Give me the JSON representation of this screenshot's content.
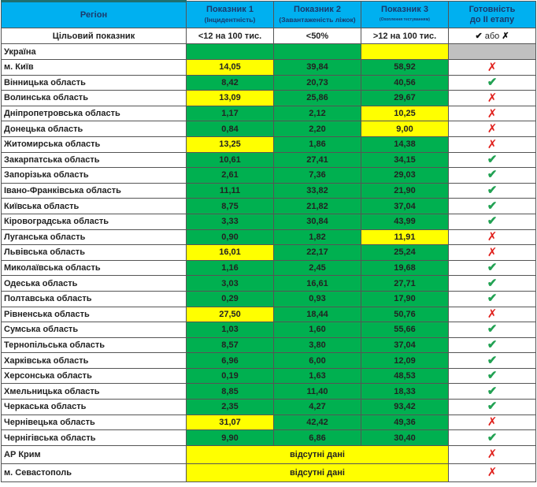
{
  "colors": {
    "pass": "#00b050",
    "fail": "#ffff00",
    "header": "#00b0f0",
    "na": "#c0c0c0",
    "check": "#21a152",
    "cross": "#e0201c"
  },
  "header": {
    "region": "Регіон",
    "ind1": {
      "title": "Показник 1",
      "sub": "(Інцидентність)"
    },
    "ind2": {
      "title": "Показник 2",
      "sub": "(Завантаженість ліжок)"
    },
    "ind3": {
      "title": "Показник 3",
      "sub": "(Охоплення тестуванням)"
    },
    "ready": {
      "line1": "Готовність",
      "line2": "до ІІ етапу"
    }
  },
  "target": {
    "label": "Цільовий показник",
    "ind1": "<12 на 100 тис.",
    "ind2": "<50%",
    "ind3": ">12 на 100 тис.",
    "ready_check": "✔",
    "ready_or": "або",
    "ready_cross": "✗"
  },
  "ukraine": {
    "name": "Україна",
    "ind1_pass": true,
    "ind2_pass": true,
    "ind3_pass": false
  },
  "rows": [
    {
      "name": "м. Київ",
      "v": [
        "14,05",
        "39,84",
        "58,92"
      ],
      "pass": [
        false,
        true,
        true
      ],
      "ready": false
    },
    {
      "name": "Вінницька область",
      "v": [
        "8,42",
        "20,73",
        "40,56"
      ],
      "pass": [
        true,
        true,
        true
      ],
      "ready": true
    },
    {
      "name": "Волинська область",
      "v": [
        "13,09",
        "25,86",
        "29,67"
      ],
      "pass": [
        false,
        true,
        true
      ],
      "ready": false
    },
    {
      "name": "Дніпропетровська область",
      "v": [
        "1,17",
        "2,12",
        "10,25"
      ],
      "pass": [
        true,
        true,
        false
      ],
      "ready": false
    },
    {
      "name": "Донецька область",
      "v": [
        "0,84",
        "2,20",
        "9,00"
      ],
      "pass": [
        true,
        true,
        false
      ],
      "ready": false
    },
    {
      "name": "Житомирська область",
      "v": [
        "13,25",
        "1,86",
        "14,38"
      ],
      "pass": [
        false,
        true,
        true
      ],
      "ready": false
    },
    {
      "name": "Закарпатська область",
      "v": [
        "10,61",
        "27,41",
        "34,15"
      ],
      "pass": [
        true,
        true,
        true
      ],
      "ready": true
    },
    {
      "name": "Запорізька область",
      "v": [
        "2,61",
        "7,36",
        "29,03"
      ],
      "pass": [
        true,
        true,
        true
      ],
      "ready": true
    },
    {
      "name": "Івано-Франківська область",
      "v": [
        "11,11",
        "33,82",
        "21,90"
      ],
      "pass": [
        true,
        true,
        true
      ],
      "ready": true
    },
    {
      "name": "Київська область",
      "v": [
        "8,75",
        "21,82",
        "37,04"
      ],
      "pass": [
        true,
        true,
        true
      ],
      "ready": true
    },
    {
      "name": "Кіровоградська область",
      "v": [
        "3,33",
        "30,84",
        "43,99"
      ],
      "pass": [
        true,
        true,
        true
      ],
      "ready": true
    },
    {
      "name": "Луганська область",
      "v": [
        "0,90",
        "1,82",
        "11,91"
      ],
      "pass": [
        true,
        true,
        false
      ],
      "ready": false
    },
    {
      "name": "Львівська область",
      "v": [
        "16,01",
        "22,17",
        "25,24"
      ],
      "pass": [
        false,
        true,
        true
      ],
      "ready": false
    },
    {
      "name": "Миколаївська область",
      "v": [
        "1,16",
        "2,45",
        "19,68"
      ],
      "pass": [
        true,
        true,
        true
      ],
      "ready": true
    },
    {
      "name": "Одеська область",
      "v": [
        "3,03",
        "16,61",
        "27,71"
      ],
      "pass": [
        true,
        true,
        true
      ],
      "ready": true
    },
    {
      "name": "Полтавська область",
      "v": [
        "0,29",
        "0,93",
        "17,90"
      ],
      "pass": [
        true,
        true,
        true
      ],
      "ready": true
    },
    {
      "name": "Рівненська область",
      "v": [
        "27,50",
        "18,44",
        "50,76"
      ],
      "pass": [
        false,
        true,
        true
      ],
      "ready": false
    },
    {
      "name": "Сумська область",
      "v": [
        "1,03",
        "1,60",
        "55,66"
      ],
      "pass": [
        true,
        true,
        true
      ],
      "ready": true
    },
    {
      "name": "Тернопільська область",
      "v": [
        "8,57",
        "3,80",
        "37,04"
      ],
      "pass": [
        true,
        true,
        true
      ],
      "ready": true
    },
    {
      "name": "Харківська область",
      "v": [
        "6,96",
        "6,00",
        "12,09"
      ],
      "pass": [
        true,
        true,
        true
      ],
      "ready": true
    },
    {
      "name": "Херсонська область",
      "v": [
        "0,19",
        "1,63",
        "48,53"
      ],
      "pass": [
        true,
        true,
        true
      ],
      "ready": true
    },
    {
      "name": "Хмельницька область",
      "v": [
        "8,85",
        "11,40",
        "18,33"
      ],
      "pass": [
        true,
        true,
        true
      ],
      "ready": true
    },
    {
      "name": "Черкаська область",
      "v": [
        "2,35",
        "4,27",
        "93,42"
      ],
      "pass": [
        true,
        true,
        true
      ],
      "ready": true
    },
    {
      "name": "Чернівецька область",
      "v": [
        "31,07",
        "42,42",
        "49,36"
      ],
      "pass": [
        false,
        true,
        true
      ],
      "ready": false
    },
    {
      "name": "Чернігівська область",
      "v": [
        "9,90",
        "6,86",
        "30,40"
      ],
      "pass": [
        true,
        true,
        true
      ],
      "ready": true
    }
  ],
  "missing": [
    {
      "name": "АР Крим",
      "text": "відсутні дані",
      "ready": false
    },
    {
      "name": "м. Севастополь",
      "text": "відсутні дані",
      "ready": false
    }
  ],
  "marks": {
    "check": "✔",
    "cross": "✗"
  }
}
